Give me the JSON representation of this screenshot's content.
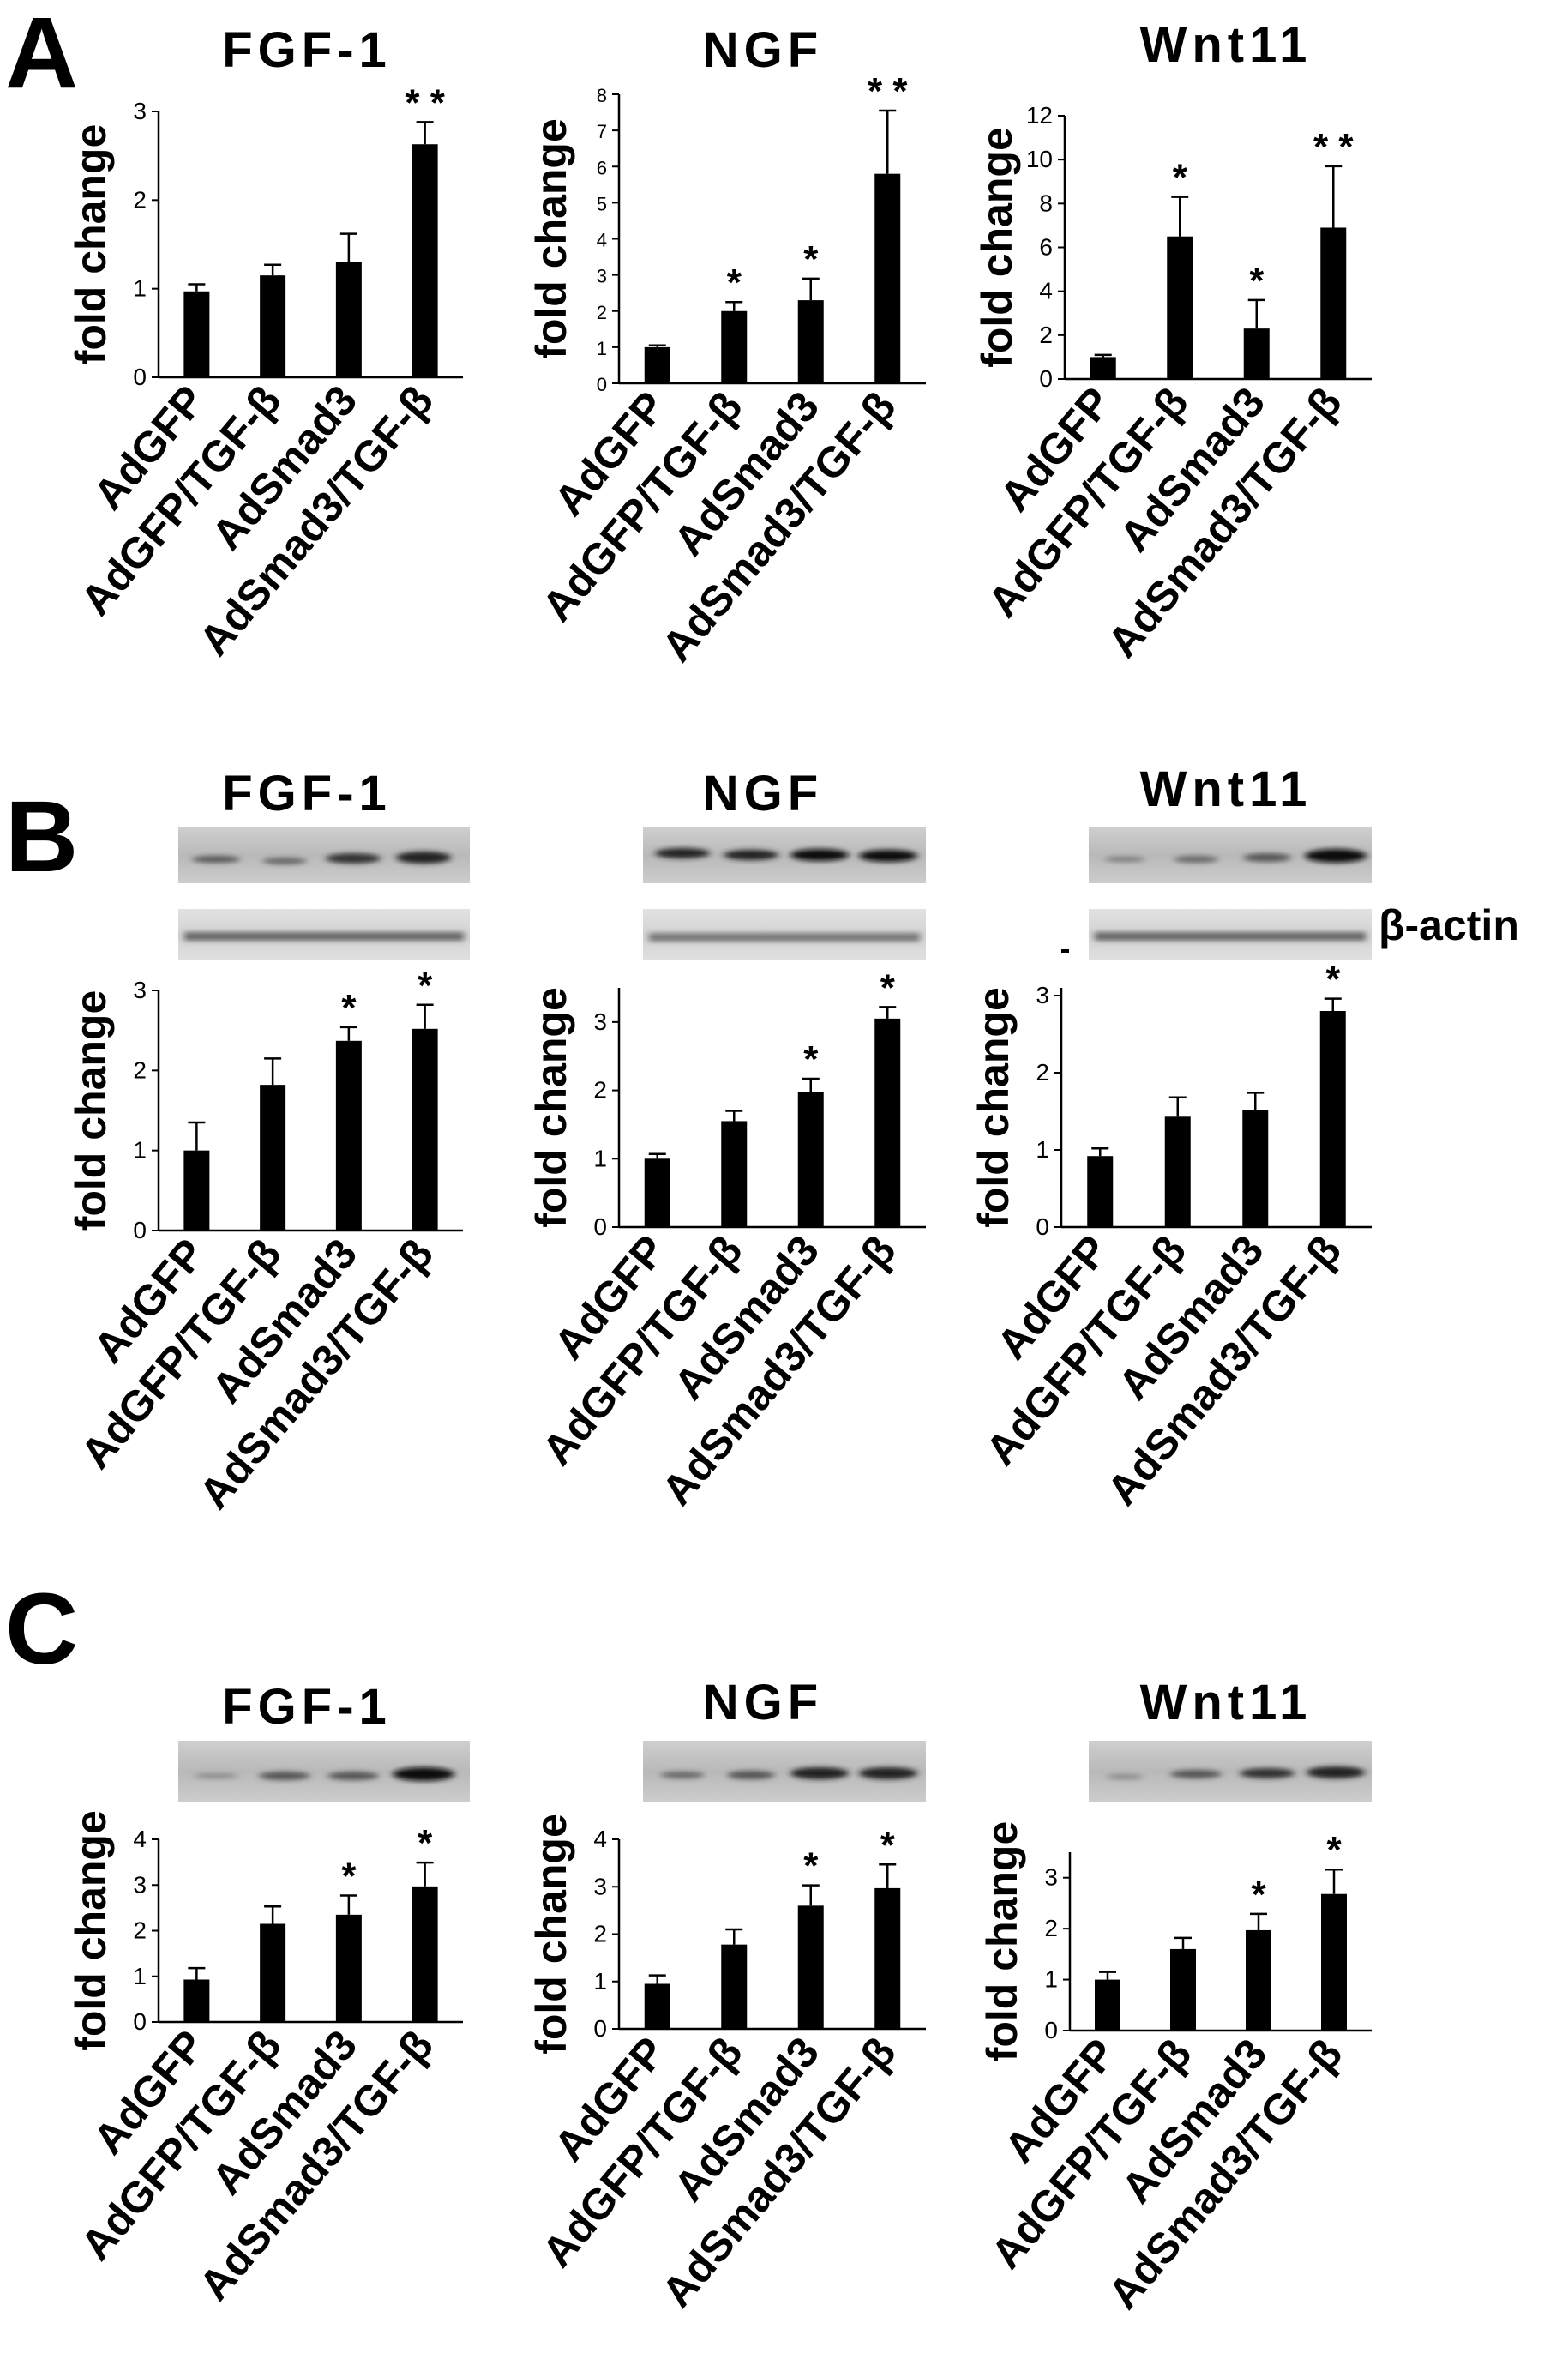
{
  "panel_letters": [
    "A",
    "B",
    "C"
  ],
  "blot_label": "β-actin",
  "chart_data": [
    {
      "panel": "A",
      "type": "bar",
      "title": "FGF-1",
      "ylabel": "fold change",
      "xlabel": "",
      "categories": [
        "AdGFP",
        "AdGFP/TGF-β",
        "AdSmad3",
        "AdSmad3/TGF-β"
      ],
      "values": [
        0.97,
        1.15,
        1.3,
        2.63
      ],
      "errors": [
        0.08,
        0.12,
        0.32,
        0.25
      ],
      "significance": [
        "",
        "",
        "",
        "**"
      ],
      "ylim": [
        0,
        3
      ],
      "yticks": [
        0,
        1,
        2,
        3
      ],
      "grid": false
    },
    {
      "panel": "A",
      "type": "bar",
      "title": "NGF",
      "ylabel": "fold change",
      "xlabel": "",
      "categories": [
        "AdGFP",
        "AdGFP/TGF-β",
        "AdSmad3",
        "AdSmad3/TGF-β"
      ],
      "values": [
        1.0,
        2.0,
        2.3,
        5.8
      ],
      "errors": [
        0.05,
        0.25,
        0.6,
        1.75
      ],
      "significance": [
        "",
        "*",
        "*",
        "**"
      ],
      "ylim": [
        0,
        8
      ],
      "yticks": [
        0,
        1,
        2,
        3,
        4,
        5,
        6,
        7,
        8
      ],
      "grid": false
    },
    {
      "panel": "A",
      "type": "bar",
      "title": "Wnt11",
      "ylabel": "fold change",
      "xlabel": "",
      "categories": [
        "AdGFP",
        "AdGFP/TGF-β",
        "AdSmad3",
        "AdSmad3/TGF-β"
      ],
      "values": [
        1.0,
        6.5,
        2.3,
        6.9
      ],
      "errors": [
        0.1,
        1.8,
        1.3,
        2.8
      ],
      "significance": [
        "",
        "*",
        "*",
        "**"
      ],
      "ylim": [
        0,
        12
      ],
      "yticks": [
        0,
        2,
        4,
        6,
        8,
        10,
        12
      ],
      "grid": false
    },
    {
      "panel": "B",
      "type": "bar",
      "title": "FGF-1",
      "ylabel": "fold change",
      "xlabel": "",
      "categories": [
        "AdGFP",
        "AdGFP/TGF-β",
        "AdSmad3",
        "AdSmad3/TGF-β"
      ],
      "values": [
        1.0,
        1.82,
        2.37,
        2.52
      ],
      "errors": [
        0.35,
        0.33,
        0.17,
        0.3
      ],
      "significance": [
        "",
        "",
        "*",
        "*"
      ],
      "ylim": [
        0,
        3
      ],
      "yticks": [
        0,
        1,
        2,
        3
      ],
      "grid": false
    },
    {
      "panel": "B",
      "type": "bar",
      "title": "NGF",
      "ylabel": "fold change",
      "xlabel": "",
      "categories": [
        "AdGFP",
        "AdGFP/TGF-β",
        "AdSmad3",
        "AdSmad3/TGF-β"
      ],
      "values": [
        1.0,
        1.55,
        1.97,
        3.05
      ],
      "errors": [
        0.07,
        0.15,
        0.2,
        0.17
      ],
      "significance": [
        "",
        "",
        "*",
        "*"
      ],
      "ylim": [
        0,
        3.5
      ],
      "yticks": [
        0,
        1,
        2,
        3
      ],
      "grid": false
    },
    {
      "panel": "B",
      "type": "bar",
      "title": "Wnt11",
      "ylabel": "fold change",
      "xlabel": "",
      "categories": [
        "AdGFP",
        "AdGFP/TGF-β",
        "AdSmad3",
        "AdSmad3/TGF-β"
      ],
      "values": [
        0.92,
        1.43,
        1.52,
        2.8
      ],
      "errors": [
        0.1,
        0.25,
        0.22,
        0.16
      ],
      "significance": [
        "",
        "",
        "",
        "*"
      ],
      "ylim": [
        0,
        3.1
      ],
      "yticks": [
        0,
        1,
        2,
        3
      ],
      "grid": false
    },
    {
      "panel": "C",
      "type": "bar",
      "title": "FGF-1",
      "ylabel": "fold change",
      "xlabel": "",
      "categories": [
        "AdGFP",
        "AdGFP/TGF-β",
        "AdSmad3",
        "AdSmad3/TGF-β"
      ],
      "values": [
        0.93,
        2.15,
        2.35,
        2.97
      ],
      "errors": [
        0.25,
        0.38,
        0.42,
        0.52
      ],
      "significance": [
        "",
        "",
        "*",
        "*"
      ],
      "ylim": [
        0,
        4
      ],
      "yticks": [
        0,
        1,
        2,
        3,
        4
      ],
      "grid": false
    },
    {
      "panel": "C",
      "type": "bar",
      "title": "NGF",
      "ylabel": "fold change",
      "xlabel": "",
      "categories": [
        "AdGFP",
        "AdGFP/TGF-β",
        "AdSmad3",
        "AdSmad3/TGF-β"
      ],
      "values": [
        0.95,
        1.78,
        2.6,
        2.97
      ],
      "errors": [
        0.18,
        0.32,
        0.43,
        0.5
      ],
      "significance": [
        "",
        "",
        "*",
        "*"
      ],
      "ylim": [
        0,
        4
      ],
      "yticks": [
        0,
        1,
        2,
        3,
        4
      ],
      "grid": false
    },
    {
      "panel": "C",
      "type": "bar",
      "title": "Wnt11",
      "ylabel": "fold change",
      "xlabel": "",
      "categories": [
        "AdGFP",
        "AdGFP/TGF-β",
        "AdSmad3",
        "AdSmad3/TGF-β"
      ],
      "values": [
        1.0,
        1.6,
        1.97,
        2.68
      ],
      "errors": [
        0.15,
        0.22,
        0.32,
        0.48
      ],
      "significance": [
        "",
        "",
        "*",
        "*"
      ],
      "ylim": [
        0,
        3.5
      ],
      "yticks": [
        0,
        1,
        2,
        3
      ],
      "grid": false
    }
  ]
}
